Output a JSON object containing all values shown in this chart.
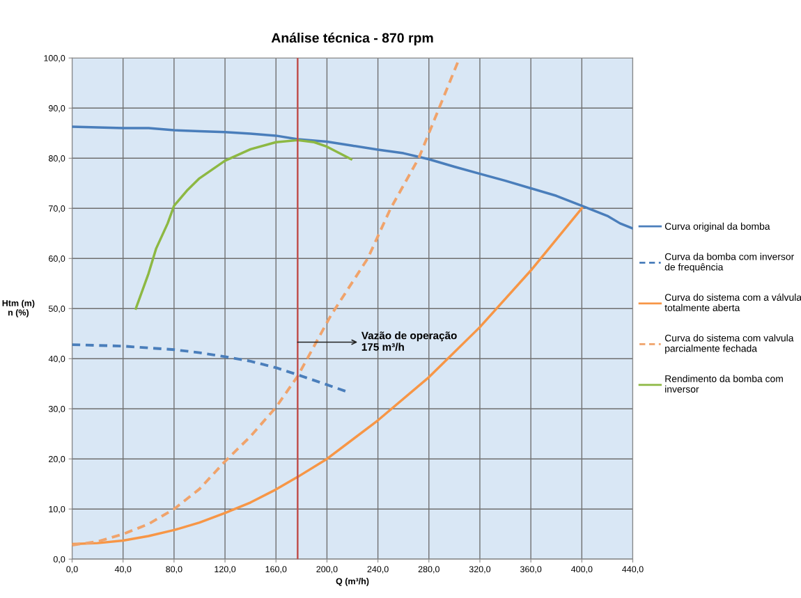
{
  "chart_data": {
    "type": "line",
    "title": "Análise técnica - 870 rpm",
    "xlabel": "Q (m³/h)",
    "ylabel": "Htm (m)\nn (%)",
    "xlim": [
      0,
      440
    ],
    "ylim": [
      0,
      100
    ],
    "xticks": [
      {
        "value": 0,
        "label": "0,0"
      },
      {
        "value": 40,
        "label": "40,0"
      },
      {
        "value": 80,
        "label": "80,0"
      },
      {
        "value": 120,
        "label": "120,0"
      },
      {
        "value": 160,
        "label": "160,0"
      },
      {
        "value": 200,
        "label": "200,0"
      },
      {
        "value": 240,
        "label": "240,0"
      },
      {
        "value": 280,
        "label": "280,0"
      },
      {
        "value": 320,
        "label": "320,0"
      },
      {
        "value": 360,
        "label": "360,0"
      },
      {
        "value": 400,
        "label": "400,0"
      },
      {
        "value": 440,
        "label": "440,0"
      }
    ],
    "yticks": [
      {
        "value": 0,
        "label": "0,0"
      },
      {
        "value": 10,
        "label": "10,0"
      },
      {
        "value": 20,
        "label": "20,0"
      },
      {
        "value": 30,
        "label": "30,0"
      },
      {
        "value": 40,
        "label": "40,0"
      },
      {
        "value": 50,
        "label": "50,0"
      },
      {
        "value": 60,
        "label": "60,0"
      },
      {
        "value": 70,
        "label": "70,0"
      },
      {
        "value": 80,
        "label": "80,0"
      },
      {
        "value": 90,
        "label": "90,0"
      },
      {
        "value": 100,
        "label": "100,0"
      }
    ],
    "grid": true,
    "legend": "right",
    "marker": "none",
    "series": [
      {
        "name": "Curva original da bomba",
        "color": "#4a7ebb",
        "line_style": "solid",
        "x": [
          0,
          40,
          60,
          80,
          100,
          120,
          140,
          160,
          177,
          200,
          220,
          240,
          260,
          280,
          300,
          320,
          340,
          360,
          380,
          400,
          420,
          430,
          440
        ],
        "values": [
          86.3,
          86.0,
          86.0,
          85.6,
          85.4,
          85.2,
          84.9,
          84.5,
          83.8,
          83.3,
          82.5,
          81.7,
          81.0,
          79.8,
          78.3,
          76.9,
          75.5,
          74.0,
          72.5,
          70.5,
          68.5,
          67.0,
          66.0
        ]
      },
      {
        "name": "Curva da bomba com inversor\nde frequência",
        "color": "#4a7ebb",
        "line_style": "dashed",
        "x": [
          0,
          40,
          80,
          100,
          120,
          140,
          160,
          177,
          200,
          217
        ],
        "values": [
          42.8,
          42.5,
          41.8,
          41.2,
          40.4,
          39.5,
          38.2,
          36.8,
          34.8,
          33.3
        ]
      },
      {
        "name": "Curva do sistema com a válvula\ntotalmente aberta",
        "color": "#f79646",
        "line_style": "solid",
        "x": [
          0,
          20,
          40,
          60,
          80,
          100,
          120,
          140,
          160,
          177,
          200,
          240,
          280,
          320,
          360,
          400
        ],
        "values": [
          3.0,
          3.2,
          3.7,
          4.6,
          5.8,
          7.3,
          9.2,
          11.3,
          13.9,
          16.4,
          20.0,
          27.7,
          36.3,
          46.3,
          57.6,
          70.0
        ]
      },
      {
        "name": "Curva do sistema com valvula\nparcialmente fechada",
        "color": "#f0a36b",
        "line_style": "dashed",
        "x": [
          0,
          20,
          40,
          60,
          80,
          100,
          120,
          140,
          160,
          177,
          203,
          232,
          250,
          272,
          288,
          304
        ],
        "values": [
          2.8,
          3.5,
          5.0,
          7.0,
          10.0,
          14.0,
          19.5,
          24.5,
          30.3,
          36.5,
          48.6,
          60.0,
          70.0,
          80.0,
          90.0,
          100.0
        ]
      },
      {
        "name": "Rendimento da bomba com\ninversor",
        "color": "#8db843",
        "line_style": "solid",
        "x": [
          50,
          60,
          66,
          75,
          80,
          90,
          100,
          120,
          140,
          160,
          177,
          190,
          200,
          219
        ],
        "values": [
          50.0,
          57.0,
          62.0,
          67.0,
          70.5,
          73.5,
          76.0,
          79.5,
          81.8,
          83.2,
          83.6,
          83.2,
          82.3,
          79.8
        ]
      }
    ],
    "ref_lines": [
      {
        "axis": "x",
        "value": 177,
        "color": "#c0504d",
        "line_style": "solid"
      }
    ],
    "annotations": [
      {
        "text": "Vazão de operação\n175 m³/h",
        "x": 177,
        "y": 43.3
      }
    ]
  }
}
